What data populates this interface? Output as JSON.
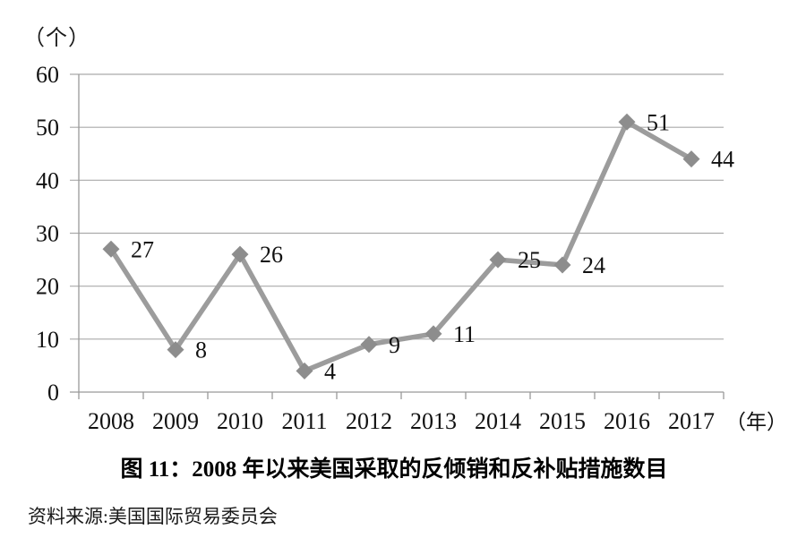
{
  "chart_data": {
    "type": "line",
    "title": "图 11：2008 年以来美国采取的反倾销和反补贴措施数目",
    "source": "资料来源:美国国际贸易委员会",
    "y_unit_label": "（个）",
    "x_unit_label": "（年）",
    "categories": [
      "2008",
      "2009",
      "2010",
      "2011",
      "2012",
      "2013",
      "2014",
      "2015",
      "2016",
      "2017"
    ],
    "values": [
      27,
      8,
      26,
      4,
      9,
      11,
      25,
      24,
      51,
      44
    ],
    "ylim": [
      0,
      60
    ],
    "y_ticks": [
      0,
      10,
      20,
      30,
      40,
      50,
      60
    ],
    "grid": true,
    "legend": "none",
    "marker": "diamond",
    "colors": {
      "line": "#9c9c9c",
      "marker": "#8d8d8d",
      "gridline": "#aaaaaa",
      "axis": "#999999",
      "text": "#111111"
    }
  }
}
